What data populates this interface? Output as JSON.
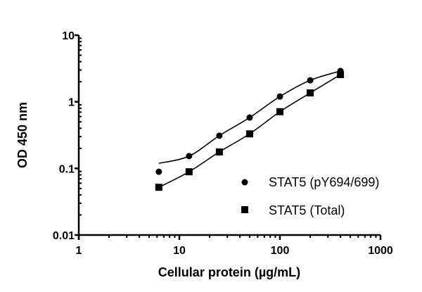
{
  "chart_data": {
    "type": "scatter",
    "title": "",
    "xlabel": "Cellular protein (µg/mL)",
    "ylabel": "OD 450 nm",
    "xscale": "log",
    "yscale": "log",
    "xlim": [
      1,
      1000
    ],
    "ylim": [
      0.01,
      10
    ],
    "x_ticks": [
      "1",
      "10",
      "100",
      "1000"
    ],
    "y_ticks": [
      "0.01",
      "0.1",
      "1",
      "10"
    ],
    "grid": false,
    "legend_position": "lower right",
    "fit_curves": true,
    "x": [
      6.25,
      12.5,
      25,
      50,
      100,
      200,
      400
    ],
    "series": [
      {
        "name": "STAT5 (pY694/699)",
        "marker": "circle",
        "values": [
          0.089,
          0.153,
          0.31,
          0.58,
          1.2,
          2.1,
          2.9
        ]
      },
      {
        "name": "STAT5 (Total)",
        "marker": "square",
        "values": [
          0.052,
          0.089,
          0.177,
          0.33,
          0.71,
          1.36,
          2.56
        ]
      }
    ]
  },
  "colors": {
    "axis": "#000000",
    "marker": "#000000",
    "line": "#000000",
    "background": "#ffffff"
  }
}
